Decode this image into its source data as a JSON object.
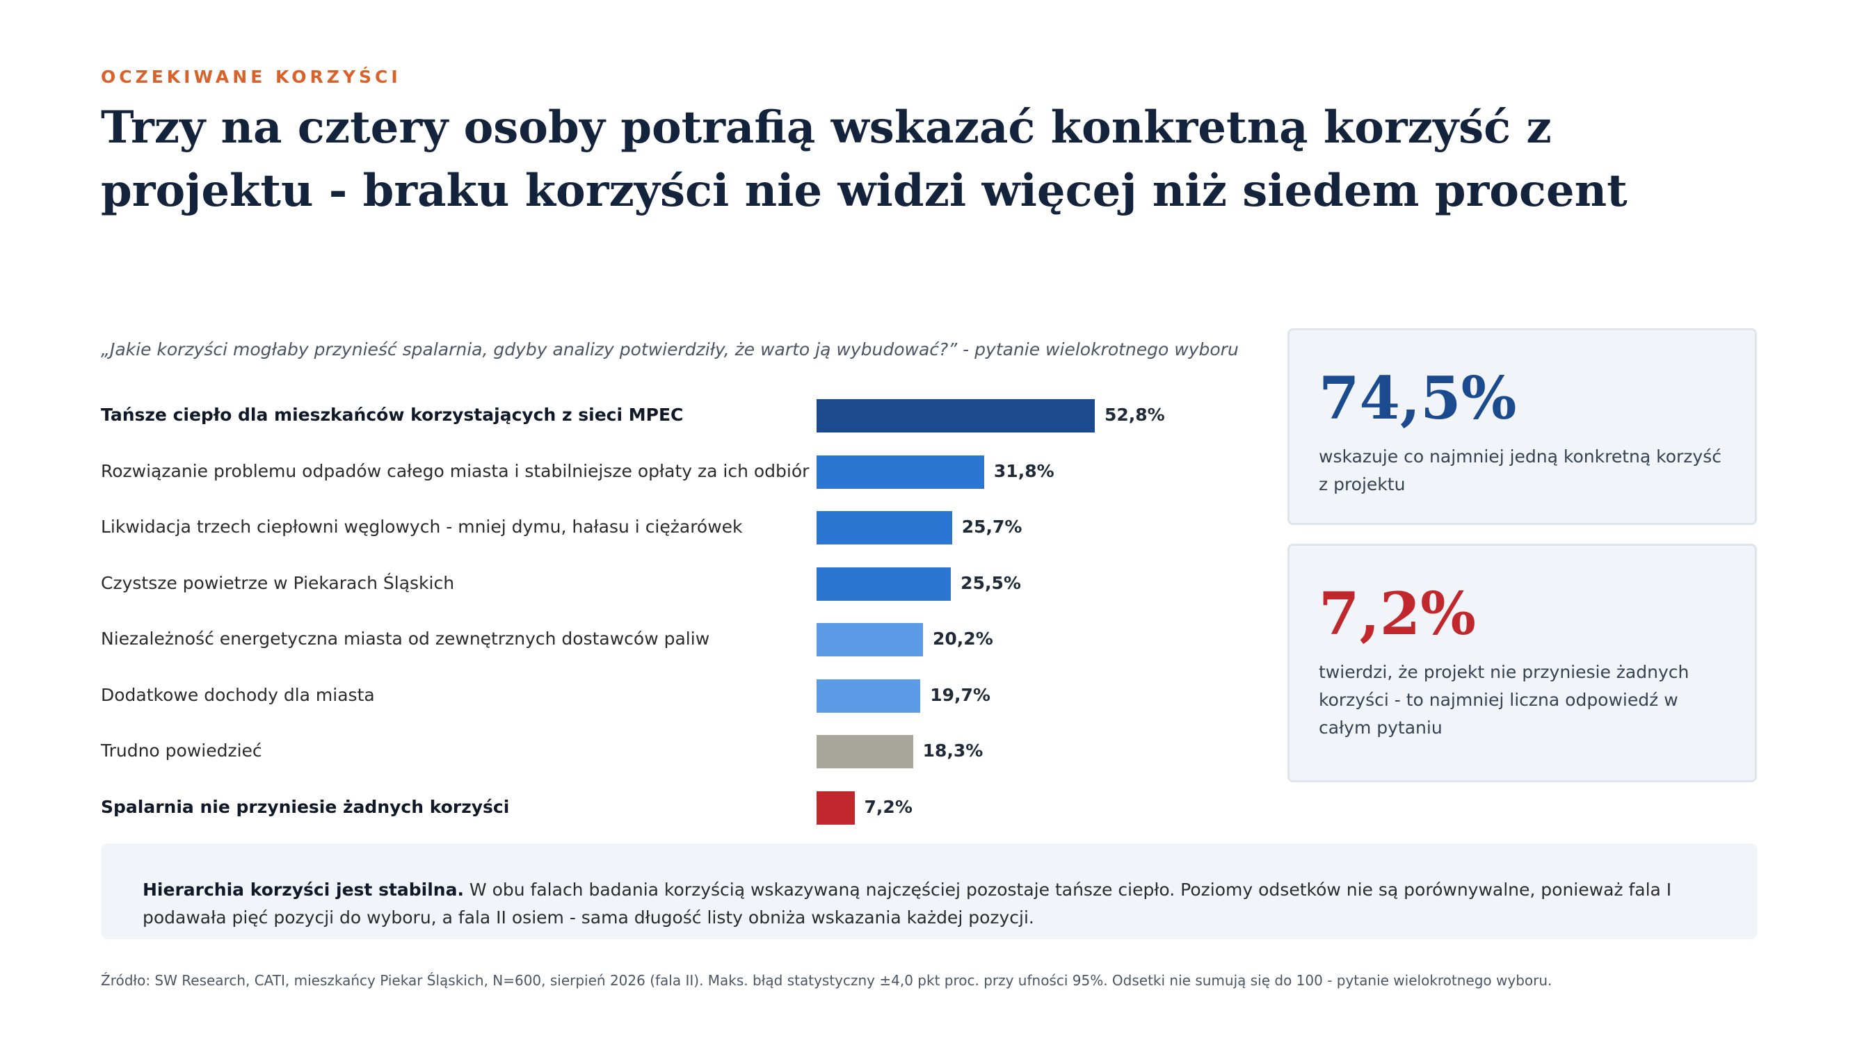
{
  "header": {
    "eyebrow": "OCZEKIWANE KORZYŚCI",
    "title": "Trzy na cztery osoby potrafią wskazać konkretną korzyść z projektu - braku korzyści nie widzi więcej niż siedem procent"
  },
  "chart_data": {
    "type": "bar",
    "orientation": "horizontal",
    "title": "„Jakie korzyści mogłaby przynieść spalarnia, gdyby analizy potwierdziły, że warto ją wybudować?” - pytanie wielokrotnego wyboru",
    "categories": [
      "Tańsze ciepło dla mieszkańców korzystających z sieci MPEC",
      "Rozwiązanie problemu odpadów całego miasta i stabilniejsze opłaty za ich odbiór",
      "Likwidacja trzech ciepłowni węglowych - mniej dymu, hałasu i ciężarówek",
      "Czystsze powietrze w Piekarach Śląskich",
      "Niezależność energetyczna miasta od zewnętrznych dostawców paliw",
      "Dodatkowe dochody dla miasta",
      "Trudno powiedzieć",
      "Spalarnia nie przyniesie żadnych korzyści"
    ],
    "values": [
      52.8,
      31.8,
      25.7,
      25.5,
      20.2,
      19.7,
      18.3,
      7.2
    ],
    "value_labels": [
      "52,8%",
      "31,8%",
      "25,7%",
      "25,5%",
      "20,2%",
      "19,7%",
      "18,3%",
      "7,2%"
    ],
    "bar_colors": [
      "#1b4a8f",
      "#2b76d2",
      "#2b76d2",
      "#2b76d2",
      "#5b9be6",
      "#5b9be6",
      "#a8a59c",
      "#c0282d"
    ],
    "bold_categories": [
      0,
      7
    ],
    "xlim": [
      0,
      100
    ],
    "grid": false
  },
  "cards": [
    {
      "value": "74,5%",
      "color": "#1b4a8f",
      "text": "wskazuje co najmniej jedną konkretną korzyść z projektu"
    },
    {
      "value": "7,2%",
      "color": "#c0282d",
      "text": "twierdzi, że projekt nie przyniesie żadnych korzyści - to najmniej liczna odpowiedź w całym pytaniu"
    }
  ],
  "note": {
    "bold": "Hierarchia korzyści jest stabilna.",
    "text": " W obu falach badania korzyścią wskazywaną najczęściej pozostaje tańsze ciepło. Poziomy odsetków nie są porównywalne, ponieważ fala I podawała pięć pozycji do wyboru, a fala II osiem - sama długość listy obniża wskazania każdej pozycji."
  },
  "source": "Źródło: SW Research, CATI, mieszkańcy Piekar Śląskich, N=600, sierpień 2026 (fala II). Maks. błąd statystyczny ±4,0 pkt proc. przy ufności 95%. Odsetki nie sumują się do 100 - pytanie wielokrotnego wyboru.",
  "colors": {
    "accent": "#d9622b",
    "title": "#14233c",
    "card_bg": "#f1f5f9"
  }
}
